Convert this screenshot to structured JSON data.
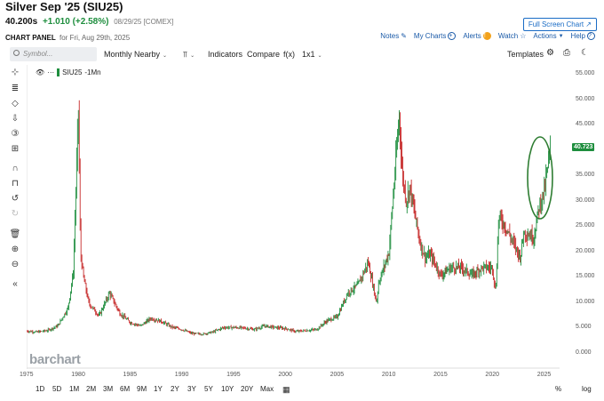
{
  "header": {
    "title": "Silver Sep '25 (SIU25)",
    "price": "40.200s",
    "change": "+1.010 (+2.58%)",
    "date_exchange": "08/29/25 [COMEX]",
    "panel_label": "CHART PANEL",
    "panel_sub": "for Fri, Aug 29th, 2025",
    "fullscreen_label": "Full Screen Chart ↗",
    "links": {
      "notes": "Notes",
      "my_charts": "My Charts",
      "alerts": "Alerts",
      "watch": "Watch",
      "actions": "Actions",
      "help": "Help"
    }
  },
  "toolbar": {
    "search_placeholder": "Symbol...",
    "period": "Monthly Nearby",
    "chart_type": "⫪",
    "indicators": "Indicators",
    "compare": "Compare",
    "fx": "f(x)",
    "layout": "1x1",
    "templates": "Templates"
  },
  "sidebar_icons": [
    "crosshair-icon",
    "draw-tools-icon",
    "shapes-icon",
    "arrow-icon",
    "numbered-icon",
    "measure-icon",
    "magnet-icon",
    "lock-icon",
    "undo-icon",
    "redo-icon",
    "trash-icon",
    "zoom-in-icon",
    "zoom-out-icon",
    "collapse-icon"
  ],
  "legend": {
    "symbol": "SIU25",
    "interval": "-1Mn"
  },
  "watermark": "barchart",
  "last_price": "40.723",
  "y_axis": [
    "55.000",
    "50.000",
    "45.000",
    "40.000",
    "35.000",
    "30.000",
    "25.000",
    "20.000",
    "15.000",
    "10.000",
    "5.000",
    "0.000"
  ],
  "x_axis": [
    "1975",
    "1980",
    "1985",
    "1990",
    "1995",
    "2000",
    "2005",
    "2010",
    "2015",
    "2020",
    "2025"
  ],
  "ranges": [
    "1D",
    "5D",
    "1M",
    "2M",
    "3M",
    "6M",
    "9M",
    "1Y",
    "2Y",
    "3Y",
    "5Y",
    "10Y",
    "20Y",
    "Max"
  ],
  "range_right": {
    "percent": "%",
    "log": "log"
  },
  "colors": {
    "up": "#1e8e3e",
    "down": "#c62828",
    "highlight": "#2e7d32"
  },
  "chart_data": {
    "type": "line",
    "x": [
      1975,
      1976,
      1977,
      1978,
      1979,
      1979.5,
      1980,
      1980.2,
      1980.5,
      1981,
      1982,
      1983,
      1984,
      1985,
      1986,
      1987,
      1988,
      1989,
      1990,
      1991,
      1992,
      1993,
      1994,
      1995,
      1996,
      1997,
      1998,
      1999,
      2000,
      2001,
      2002,
      2003,
      2004,
      2005,
      2006,
      2007,
      2008,
      2008.8,
      2009,
      2010,
      2011,
      2011.3,
      2011.7,
      2012,
      2013,
      2013.5,
      2014,
      2015,
      2016,
      2017,
      2018,
      2019,
      2020,
      2020.3,
      2020.6,
      2021,
      2022,
      2022.7,
      2023,
      2024,
      2024.5,
      2025,
      2025.6
    ],
    "values": [
      4.5,
      4.3,
      4.6,
      5.5,
      9.0,
      16.0,
      48.0,
      20.0,
      15.0,
      10.0,
      7.5,
      12.0,
      8.0,
      6.2,
      5.5,
      7.0,
      6.4,
      5.3,
      4.8,
      4.0,
      3.9,
      4.3,
      5.2,
      5.2,
      5.1,
      4.8,
      5.5,
      5.2,
      5.0,
      4.4,
      4.6,
      4.8,
      6.5,
      7.3,
      12.0,
      13.5,
      18.0,
      10.0,
      14.0,
      20.0,
      47.0,
      35.0,
      30.0,
      33.0,
      22.0,
      19.0,
      19.5,
      15.5,
      17.0,
      17.0,
      15.5,
      17.0,
      17.0,
      12.0,
      27.0,
      26.0,
      22.0,
      19.0,
      24.0,
      23.0,
      29.0,
      32.0,
      40.2
    ],
    "ylim": [
      0,
      55
    ],
    "xlim": [
      1975,
      2027
    ],
    "scale": "linear",
    "annotation": "green ellipse highlighting 2024–2025 rise"
  }
}
